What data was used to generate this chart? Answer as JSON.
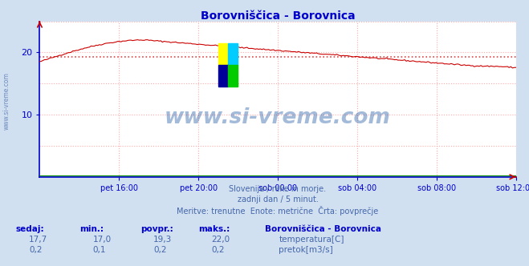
{
  "title": "Borovniščica - Borovnica",
  "title_color": "#0000cc",
  "bg_color": "#d0e0f0",
  "plot_bg_color": "#ffffff",
  "grid_color": "#ffaaaa",
  "spine_color_lr": "#0000cc",
  "axis_arrow_color": "#cc0000",
  "text_color": "#4466aa",
  "watermark_text": "www.si-vreme.com",
  "watermark_color": "#3366aa",
  "subtitle_lines": [
    "Slovenija / reke in morje.",
    "zadnji dan / 5 minut.",
    "Meritve: trenutne  Enote: metrične  Črta: povprečje"
  ],
  "xlabel_ticks": [
    "pet 16:00",
    "pet 20:00",
    "sob 00:00",
    "sob 04:00",
    "sob 08:00",
    "sob 12:00"
  ],
  "ylim": [
    0,
    25
  ],
  "ytick_vals": [
    10,
    20
  ],
  "avg_line": 19.3,
  "avg_color": "#dd4444",
  "temp_color": "#cc0000",
  "flow_color": "#008800",
  "table_headers": [
    "sedaj:",
    "min.:",
    "povpr.:",
    "maks.:"
  ],
  "table_row1": [
    "17,7",
    "17,0",
    "19,3",
    "22,0"
  ],
  "table_row2": [
    "0,2",
    "0,1",
    "0,2",
    "0,2"
  ],
  "legend_label1": "temperatura[C]",
  "legend_label2": "pretok[m3/s]",
  "legend_title": "Borovniščica - Borovnica",
  "n_points": 288,
  "logo_colors": [
    "#ffff00",
    "#00ccff",
    "#000099",
    "#00cc00"
  ]
}
